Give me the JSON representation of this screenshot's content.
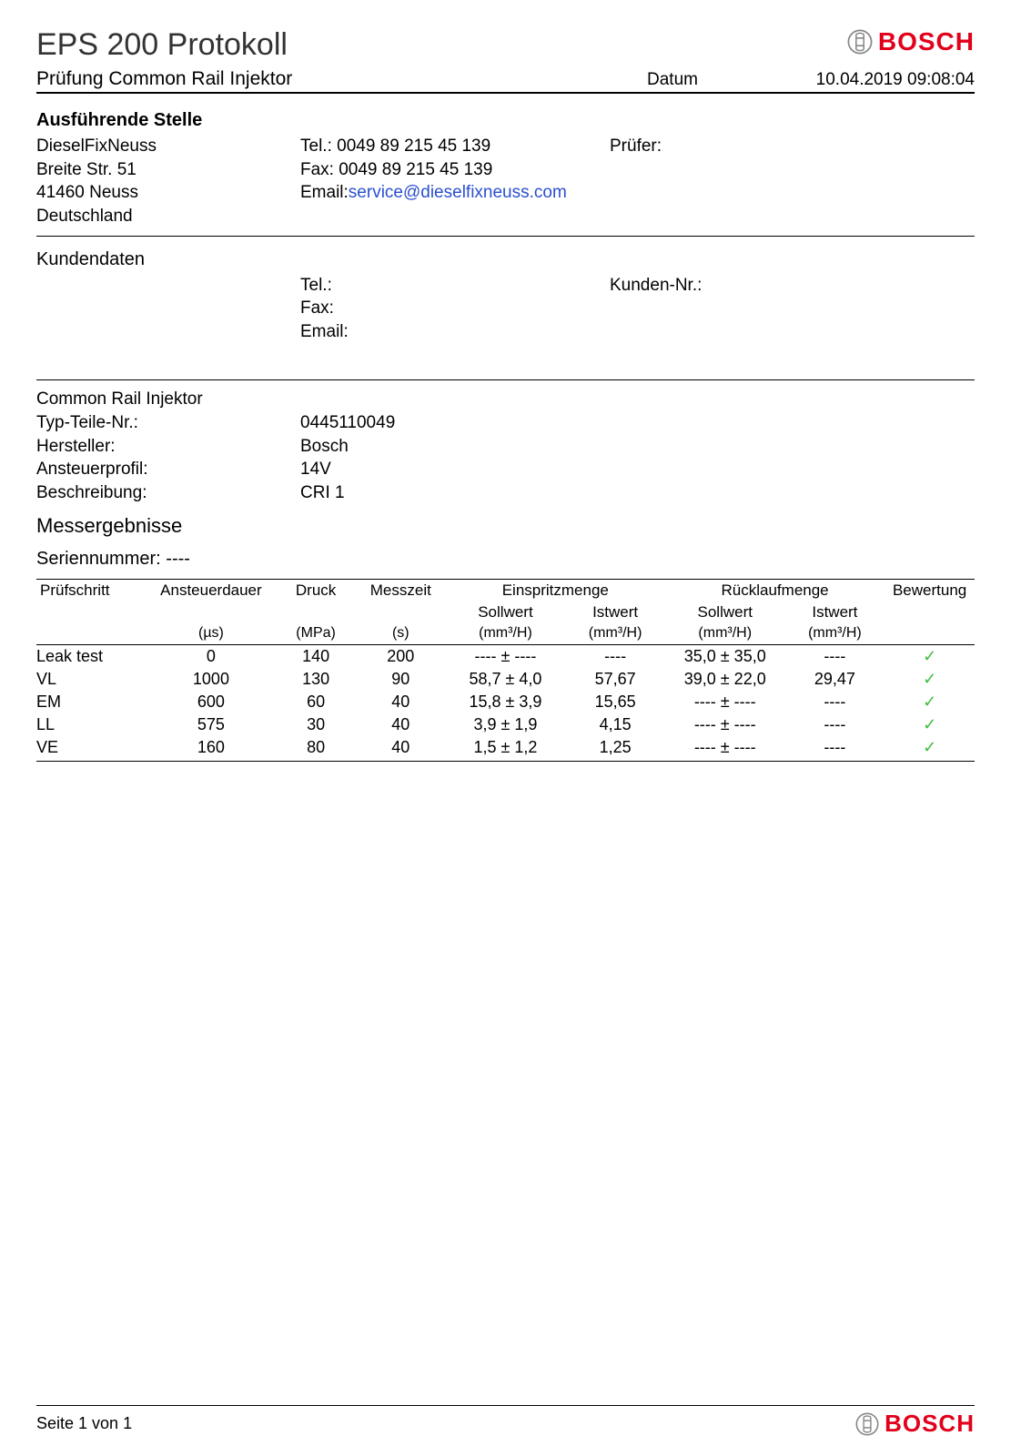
{
  "header": {
    "title": "EPS 200 Protokoll",
    "subtitle": "Prüfung Common Rail Injektor",
    "date_label": "Datum",
    "date_value": "10.04.2019 09:08:04",
    "brand": "BOSCH"
  },
  "station": {
    "heading": "Ausführende Stelle",
    "name": "DieselFixNeuss",
    "street": "Breite Str. 51",
    "city": "41460 Neuss",
    "country": "Deutschland",
    "tel_label": "Tel.:",
    "tel": "0049 89 215 45 139",
    "fax_label": "Fax:",
    "fax": "0049 89 215 45 139",
    "email_label": "Email:",
    "email": "service@dieselfixneuss.com",
    "tester_label": "Prüfer:"
  },
  "customer": {
    "heading": "Kundendaten",
    "tel_label": "Tel.:",
    "fax_label": "Fax:",
    "email_label": "Email:",
    "custno_label": "Kunden-Nr.:"
  },
  "injector": {
    "heading": "Common Rail Injektor",
    "type_label": "Typ-Teile-Nr.:",
    "type_value": "0445110049",
    "manuf_label": "Hersteller:",
    "manuf_value": "Bosch",
    "profile_label": "Ansteuerprofil:",
    "profile_value": "14V",
    "desc_label": "Beschreibung:",
    "desc_value": "CRI 1"
  },
  "results": {
    "heading": "Messergebnisse",
    "serial_label": "Seriennummer:",
    "serial_value": "----",
    "columns": {
      "step": "Prüfschritt",
      "duration": "Ansteuerdauer",
      "duration_unit": "(µs)",
      "pressure": "Druck",
      "pressure_unit": "(MPa)",
      "meastime": "Messzeit",
      "meastime_unit": "(s)",
      "inject": "Einspritzmenge",
      "return": "Rücklaufmenge",
      "target": "Sollwert",
      "actual": "Istwert",
      "vol_unit": "(mm³/H)",
      "rating": "Bewertung"
    },
    "rows": [
      {
        "step": "Leak test",
        "dur": "0",
        "pres": "140",
        "mt": "200",
        "inj_t": "---- ± ----",
        "inj_a": "----",
        "ret_t": "35,0 ± 35,0",
        "ret_a": "----",
        "ok": "✓"
      },
      {
        "step": "VL",
        "dur": "1000",
        "pres": "130",
        "mt": "90",
        "inj_t": "58,7 ± 4,0",
        "inj_a": "57,67",
        "ret_t": "39,0 ± 22,0",
        "ret_a": "29,47",
        "ok": "✓"
      },
      {
        "step": "EM",
        "dur": "600",
        "pres": "60",
        "mt": "40",
        "inj_t": "15,8 ± 3,9",
        "inj_a": "15,65",
        "ret_t": "---- ± ----",
        "ret_a": "----",
        "ok": "✓"
      },
      {
        "step": "LL",
        "dur": "575",
        "pres": "30",
        "mt": "40",
        "inj_t": "3,9 ± 1,9",
        "inj_a": "4,15",
        "ret_t": "---- ± ----",
        "ret_a": "----",
        "ok": "✓"
      },
      {
        "step": "VE",
        "dur": "160",
        "pres": "80",
        "mt": "40",
        "inj_t": "1,5 ± 1,2",
        "inj_a": "1,25",
        "ret_t": "---- ± ----",
        "ret_a": "----",
        "ok": "✓"
      }
    ]
  },
  "footer": {
    "page": "Seite 1 von 1"
  },
  "colors": {
    "brand": "#e2001a",
    "check": "#3fbf3f",
    "link": "#2a4fd0"
  }
}
